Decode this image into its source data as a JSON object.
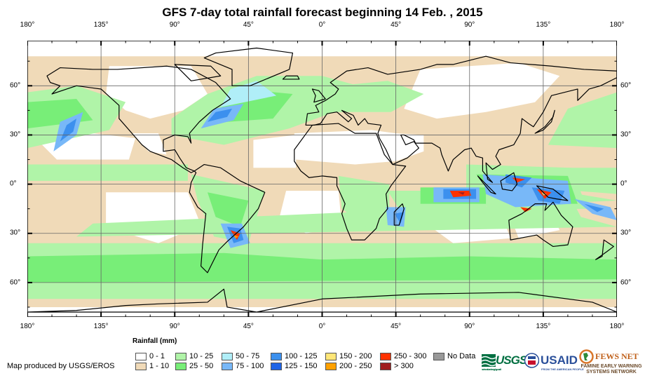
{
  "title": "GFS 7-day total rainfall forecast beginning 14 Feb. , 2015",
  "lon_labels": [
    "180°",
    "135°",
    "90°",
    "45°",
    "0°",
    "45°",
    "90°",
    "135°",
    "180°"
  ],
  "lat_labels": [
    "60°",
    "30°",
    "0°",
    "30°",
    "60°"
  ],
  "legend": {
    "title": "Rainfall (mm)",
    "items": [
      {
        "label": "0 - 1",
        "color": "#ffffff"
      },
      {
        "label": "1 - 10",
        "color": "#f0dab8"
      },
      {
        "label": "10 - 25",
        "color": "#b0f4a8"
      },
      {
        "label": "25 - 50",
        "color": "#78ee78"
      },
      {
        "label": "50 - 75",
        "color": "#b0eef8"
      },
      {
        "label": "75 - 100",
        "color": "#78b8f8"
      },
      {
        "label": "100 - 125",
        "color": "#3c90ee"
      },
      {
        "label": "125 - 150",
        "color": "#1e64e6"
      },
      {
        "label": "150 - 200",
        "color": "#ffe678"
      },
      {
        "label": "200 - 250",
        "color": "#ffa000"
      },
      {
        "label": "250 - 300",
        "color": "#ff3200"
      },
      {
        "label": "> 300",
        "color": "#a01e1e"
      },
      {
        "label": "No Data",
        "color": "#999999"
      }
    ]
  },
  "credit": "Map produced by USGS/EROS",
  "logos": {
    "usgs": "USGS",
    "usgs_tagline": "science for a changing world",
    "usaid": "USAID",
    "usaid_tagline": "FROM THE AMERICAN PEOPLE",
    "fews": "FEWS NET",
    "fews_tagline": "FAMINE EARLY WARNING SYSTEMS NETWORK"
  }
}
